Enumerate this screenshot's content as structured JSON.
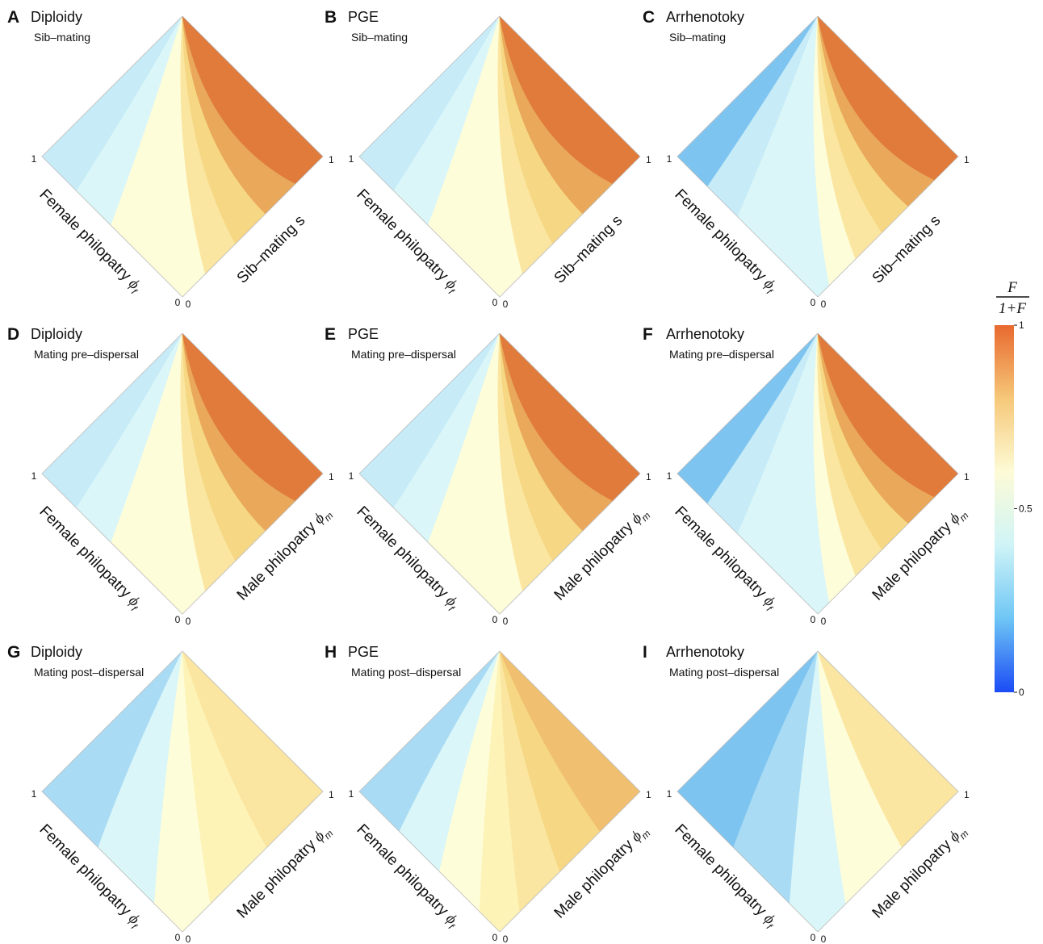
{
  "colorbar": {
    "title_num": "F",
    "title_den": "1+F",
    "ticks": [
      "1",
      "0.5",
      "0"
    ],
    "tick_values": [
      1,
      0.5,
      0
    ],
    "colors": [
      "#e8692f",
      "#f6c879",
      "#fdfbd6",
      "#cff4f7",
      "#6ec6f5",
      "#1b4bf5"
    ]
  },
  "panel_colors": {
    "blue_deep": "#7ec4f0",
    "blue_mid": "#a9dcf4",
    "blue_light": "#c7ecf7",
    "cyan_pale": "#daf6f8",
    "cream": "#fefdd9",
    "yellow_pale": "#fdf3b7",
    "yellow": "#fae6a0",
    "yellow_mid": "#f6d784",
    "orange_light": "#f0c070",
    "orange": "#e9a85a",
    "orange_deep": "#e07b3c"
  },
  "chart_data": [
    {
      "type": "heatmap",
      "letter": "A",
      "title": "Diploidy",
      "subtitle": "Sib–mating",
      "left_axis": "Female philopatry",
      "left_symbol": "ϕ",
      "left_sub": "f",
      "right_axis": "Sib–mating s",
      "right_symbol": "",
      "right_sub": "",
      "left_ticks": [
        "1",
        "0"
      ],
      "right_ticks": [
        "1",
        "0"
      ],
      "value_range": [
        0,
        1
      ],
      "mode": "sib",
      "bands": [
        {
          "color": "blue_light",
          "value": 0.42
        },
        {
          "color": "cyan_pale",
          "value": 0.47
        },
        {
          "color": "cream",
          "value": 0.52
        },
        {
          "color": "yellow",
          "value": 0.6
        },
        {
          "color": "yellow_mid",
          "value": 0.67
        },
        {
          "color": "orange",
          "value": 0.75
        },
        {
          "color": "orange_deep",
          "value": 0.85
        }
      ]
    },
    {
      "type": "heatmap",
      "letter": "B",
      "title": "PGE",
      "subtitle": "Sib–mating",
      "left_axis": "Female philopatry",
      "left_symbol": "ϕ",
      "left_sub": "f",
      "right_axis": "Sib–mating s",
      "right_symbol": "",
      "right_sub": "",
      "left_ticks": [
        "1",
        "0"
      ],
      "right_ticks": [
        "1",
        "0"
      ],
      "value_range": [
        0,
        1
      ],
      "mode": "sib",
      "bands": [
        {
          "color": "blue_light",
          "value": 0.42
        },
        {
          "color": "cyan_pale",
          "value": 0.47
        },
        {
          "color": "cream",
          "value": 0.52
        },
        {
          "color": "yellow",
          "value": 0.62
        },
        {
          "color": "yellow_mid",
          "value": 0.68
        },
        {
          "color": "orange",
          "value": 0.76
        },
        {
          "color": "orange_deep",
          "value": 0.86
        }
      ]
    },
    {
      "type": "heatmap",
      "letter": "C",
      "title": "Arrhenotoky",
      "subtitle": "Sib–mating",
      "left_axis": "Female philopatry",
      "left_symbol": "ϕ",
      "left_sub": "f",
      "right_axis": "Sib–mating s",
      "right_symbol": "",
      "right_sub": "",
      "left_ticks": [
        "1",
        "0"
      ],
      "right_ticks": [
        "1",
        "0"
      ],
      "value_range": [
        0,
        1
      ],
      "mode": "sib",
      "bands": [
        {
          "color": "blue_deep",
          "value": 0.36
        },
        {
          "color": "blue_light",
          "value": 0.42
        },
        {
          "color": "cyan_pale",
          "value": 0.47
        },
        {
          "color": "cream",
          "value": 0.52
        },
        {
          "color": "yellow",
          "value": 0.6
        },
        {
          "color": "yellow_mid",
          "value": 0.67
        },
        {
          "color": "orange",
          "value": 0.75
        },
        {
          "color": "orange_deep",
          "value": 0.85
        }
      ]
    },
    {
      "type": "heatmap",
      "letter": "D",
      "title": "Diploidy",
      "subtitle": "Mating pre–dispersal",
      "left_axis": "Female philopatry",
      "left_symbol": "ϕ",
      "left_sub": "f",
      "right_axis": "Male philopatry",
      "right_symbol": "ϕ",
      "right_sub": "m",
      "left_ticks": [
        "1",
        "0"
      ],
      "right_ticks": [
        "1",
        "0"
      ],
      "value_range": [
        0,
        1
      ],
      "mode": "pre",
      "bands": [
        {
          "color": "blue_light",
          "value": 0.42
        },
        {
          "color": "cyan_pale",
          "value": 0.47
        },
        {
          "color": "cream",
          "value": 0.52
        },
        {
          "color": "yellow",
          "value": 0.6
        },
        {
          "color": "yellow_mid",
          "value": 0.67
        },
        {
          "color": "orange",
          "value": 0.75
        },
        {
          "color": "orange_deep",
          "value": 0.85
        }
      ]
    },
    {
      "type": "heatmap",
      "letter": "E",
      "title": "PGE",
      "subtitle": "Mating pre–dispersal",
      "left_axis": "Female philopatry",
      "left_symbol": "ϕ",
      "left_sub": "f",
      "right_axis": "Male philopatry",
      "right_symbol": "ϕ",
      "right_sub": "m",
      "left_ticks": [
        "1",
        "0"
      ],
      "right_ticks": [
        "1",
        "0"
      ],
      "value_range": [
        0,
        1
      ],
      "mode": "pre",
      "bands": [
        {
          "color": "blue_light",
          "value": 0.42
        },
        {
          "color": "cyan_pale",
          "value": 0.47
        },
        {
          "color": "cream",
          "value": 0.52
        },
        {
          "color": "yellow",
          "value": 0.62
        },
        {
          "color": "yellow_mid",
          "value": 0.68
        },
        {
          "color": "orange",
          "value": 0.76
        },
        {
          "color": "orange_deep",
          "value": 0.86
        }
      ]
    },
    {
      "type": "heatmap",
      "letter": "F",
      "title": "Arrhenotoky",
      "subtitle": "Mating pre–dispersal",
      "left_axis": "Female philopatry",
      "left_symbol": "ϕ",
      "left_sub": "f",
      "right_axis": "Male philopatry",
      "right_symbol": "ϕ",
      "right_sub": "m",
      "left_ticks": [
        "1",
        "0"
      ],
      "right_ticks": [
        "1",
        "0"
      ],
      "value_range": [
        0,
        1
      ],
      "mode": "pre",
      "bands": [
        {
          "color": "blue_deep",
          "value": 0.36
        },
        {
          "color": "blue_light",
          "value": 0.42
        },
        {
          "color": "cyan_pale",
          "value": 0.47
        },
        {
          "color": "cream",
          "value": 0.52
        },
        {
          "color": "yellow",
          "value": 0.6
        },
        {
          "color": "yellow_mid",
          "value": 0.67
        },
        {
          "color": "orange",
          "value": 0.75
        },
        {
          "color": "orange_deep",
          "value": 0.85
        }
      ]
    },
    {
      "type": "heatmap",
      "letter": "G",
      "title": "Diploidy",
      "subtitle": "Mating post–dispersal",
      "left_axis": "Female philopatry",
      "left_symbol": "ϕ",
      "left_sub": "f",
      "right_axis": "Male philopatry",
      "right_symbol": "ϕ",
      "right_sub": "m",
      "left_ticks": [
        "1",
        "0"
      ],
      "right_ticks": [
        "1",
        "0"
      ],
      "value_range": [
        0,
        1
      ],
      "mode": "post",
      "bands": [
        {
          "color": "blue_mid",
          "value": 0.4
        },
        {
          "color": "cyan_pale",
          "value": 0.47
        },
        {
          "color": "cream",
          "value": 0.52
        },
        {
          "color": "yellow_pale",
          "value": 0.58
        },
        {
          "color": "yellow",
          "value": 0.62
        }
      ]
    },
    {
      "type": "heatmap",
      "letter": "H",
      "title": "PGE",
      "subtitle": "Mating post–dispersal",
      "left_axis": "Female philopatry",
      "left_symbol": "ϕ",
      "left_sub": "f",
      "right_axis": "Male philopatry",
      "right_symbol": "ϕ",
      "right_sub": "m",
      "left_ticks": [
        "1",
        "0"
      ],
      "right_ticks": [
        "1",
        "0"
      ],
      "value_range": [
        0,
        1
      ],
      "mode": "post",
      "bands": [
        {
          "color": "blue_mid",
          "value": 0.4
        },
        {
          "color": "cyan_pale",
          "value": 0.47
        },
        {
          "color": "cream",
          "value": 0.52
        },
        {
          "color": "yellow_pale",
          "value": 0.58
        },
        {
          "color": "yellow",
          "value": 0.63
        },
        {
          "color": "yellow_mid",
          "value": 0.68
        },
        {
          "color": "orange_light",
          "value": 0.73
        }
      ]
    },
    {
      "type": "heatmap",
      "letter": "I",
      "title": "Arrhenotoky",
      "subtitle": "Mating post–dispersal",
      "left_axis": "Female philopatry",
      "left_symbol": "ϕ",
      "left_sub": "f",
      "right_axis": "Male philopatry",
      "right_symbol": "ϕ",
      "right_sub": "m",
      "left_ticks": [
        "1",
        "0"
      ],
      "right_ticks": [
        "1",
        "0"
      ],
      "value_range": [
        0,
        1
      ],
      "mode": "post",
      "bands": [
        {
          "color": "blue_deep",
          "value": 0.36
        },
        {
          "color": "blue_mid",
          "value": 0.41
        },
        {
          "color": "cyan_pale",
          "value": 0.47
        },
        {
          "color": "cream",
          "value": 0.52
        },
        {
          "color": "yellow",
          "value": 0.6
        }
      ]
    }
  ]
}
